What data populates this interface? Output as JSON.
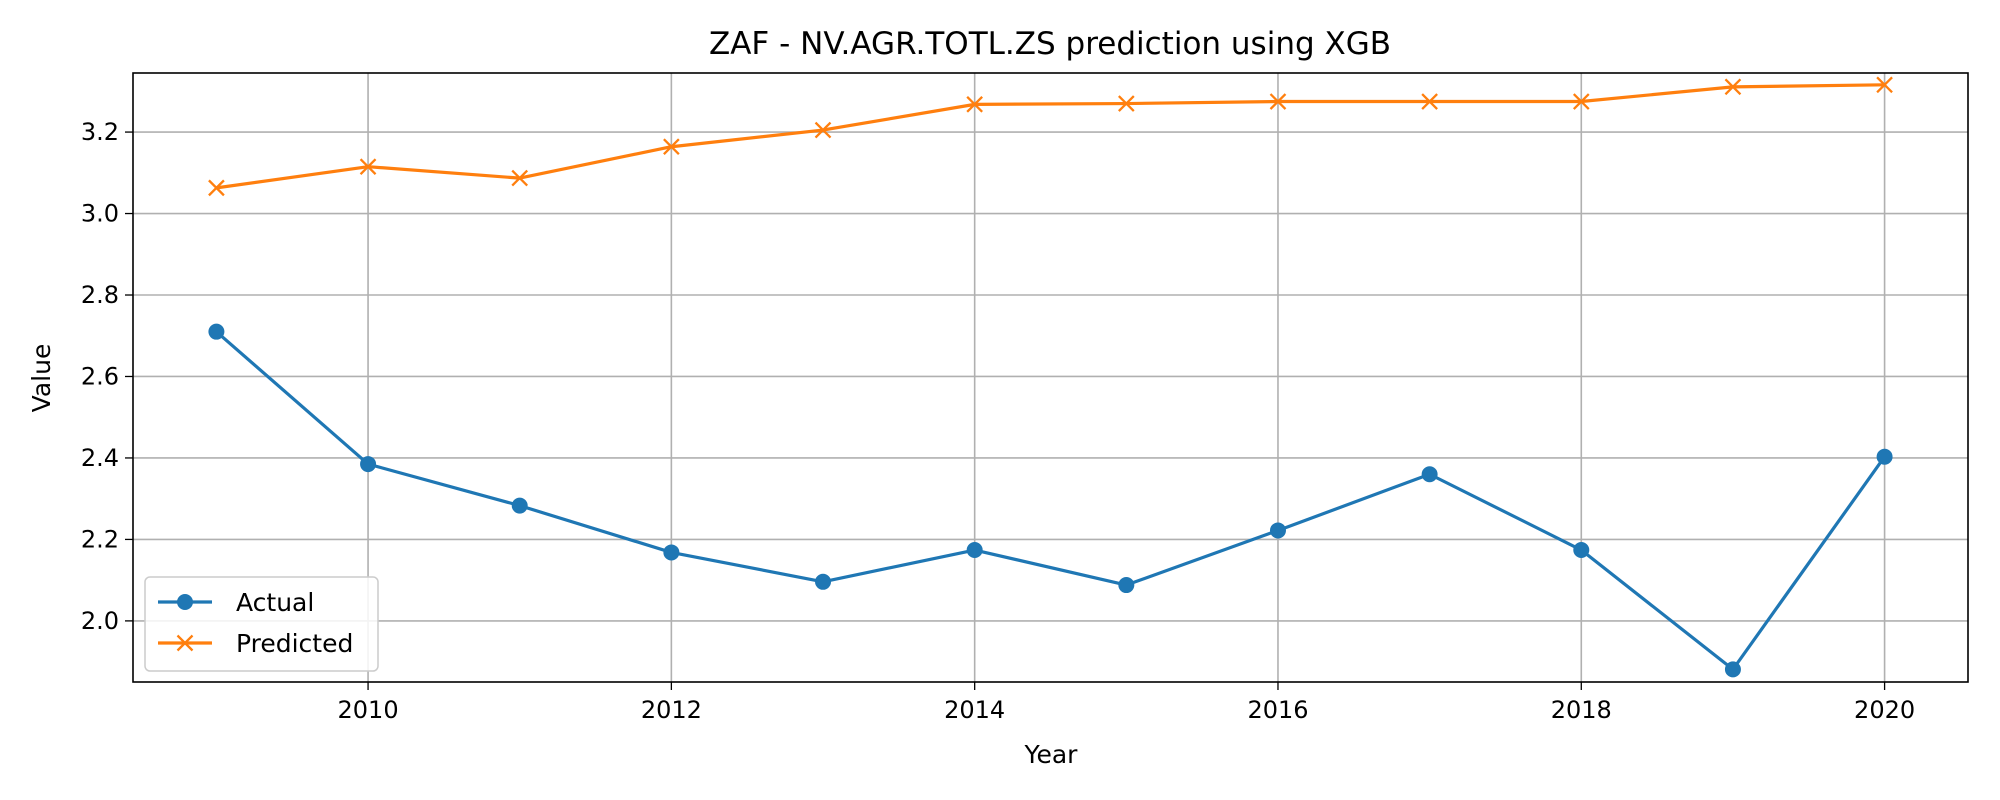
{
  "chart_data": {
    "type": "line",
    "title": "ZAF - NV.AGR.TOTL.ZS prediction using XGB",
    "xlabel": "Year",
    "ylabel": "Value",
    "x": [
      2009,
      2010,
      2011,
      2012,
      2013,
      2014,
      2015,
      2016,
      2017,
      2018,
      2019,
      2020
    ],
    "xlim": [
      2008.45,
      2020.55
    ],
    "ylim": [
      1.85,
      3.345
    ],
    "xticks": [
      2010,
      2012,
      2014,
      2016,
      2018,
      2020
    ],
    "yticks": [
      2.0,
      2.2,
      2.4,
      2.6,
      2.8,
      3.0,
      3.2
    ],
    "xtick_labels": [
      "2010",
      "2012",
      "2014",
      "2016",
      "2018",
      "2020"
    ],
    "ytick_labels": [
      "2.0",
      "2.2",
      "2.4",
      "2.6",
      "2.8",
      "3.0",
      "3.2"
    ],
    "grid": true,
    "legend_position": "lower-left",
    "series": [
      {
        "name": "Actual",
        "marker": "circle",
        "color": "#1f77b4",
        "values": [
          2.71,
          2.385,
          2.283,
          2.168,
          2.096,
          2.174,
          2.088,
          2.222,
          2.36,
          2.174,
          1.881,
          2.403
        ]
      },
      {
        "name": "Predicted",
        "marker": "x",
        "color": "#ff7f0e",
        "values": [
          3.063,
          3.115,
          3.087,
          3.164,
          3.205,
          3.268,
          3.27,
          3.275,
          3.275,
          3.275,
          3.311,
          3.316
        ]
      }
    ]
  }
}
